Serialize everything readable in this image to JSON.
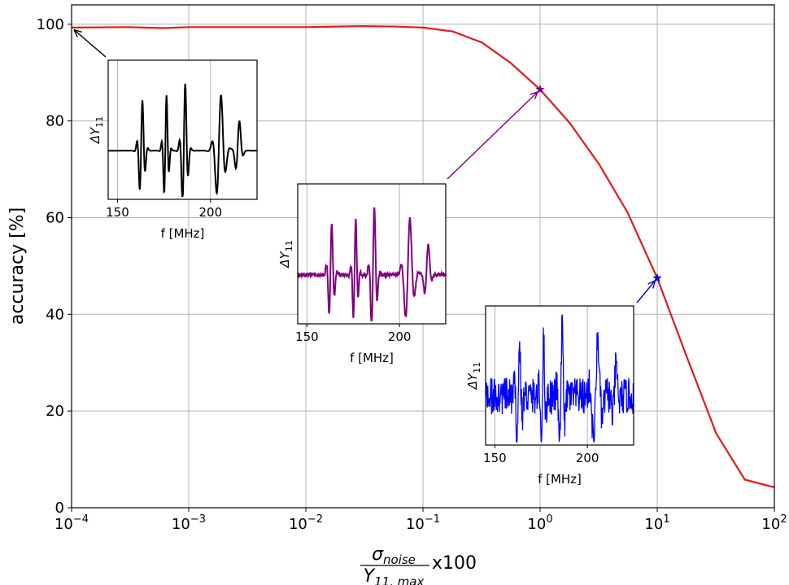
{
  "chart_data": {
    "type": "line",
    "title": "",
    "ylabel": "accuracy [%]",
    "xlabel": {
      "numerator_sym": "σ",
      "numerator_sub": "noise",
      "denominator_sym": "Y",
      "denominator_sub": "11, max",
      "suffix": "x100"
    },
    "x_scale": "log",
    "xlim": [
      0.0001,
      100
    ],
    "ylim": [
      0,
      104
    ],
    "grid": true,
    "x_ticks": [
      {
        "value": 0.0001,
        "base": "10",
        "exp": "−4"
      },
      {
        "value": 0.001,
        "base": "10",
        "exp": "−3"
      },
      {
        "value": 0.01,
        "base": "10",
        "exp": "−2"
      },
      {
        "value": 0.1,
        "base": "10",
        "exp": "−1"
      },
      {
        "value": 1,
        "base": "10",
        "exp": "0"
      },
      {
        "value": 10,
        "base": "10",
        "exp": "1"
      },
      {
        "value": 100,
        "base": "10",
        "exp": "2"
      }
    ],
    "y_ticks": [
      0,
      20,
      40,
      60,
      80,
      100
    ],
    "series": [
      {
        "color": "#e41a1c",
        "x": [
          0.0001,
          0.0003,
          0.0006,
          0.001,
          0.003,
          0.006,
          0.01,
          0.03,
          0.06,
          0.1,
          0.18,
          0.32,
          0.56,
          1,
          1.8,
          3.2,
          5.6,
          10,
          18,
          32,
          56,
          100
        ],
        "y": [
          99.3,
          99.4,
          99.2,
          99.4,
          99.4,
          99.4,
          99.4,
          99.6,
          99.5,
          99.3,
          98.5,
          96.2,
          92,
          86.5,
          79.5,
          71,
          61,
          47.5,
          31,
          15.3,
          5.8,
          4.2
        ]
      }
    ],
    "markers": [
      {
        "x": 0.0001,
        "y": 99.3,
        "color": "#000000"
      },
      {
        "x": 1,
        "y": 86.5,
        "color": "#800080"
      },
      {
        "x": 10,
        "y": 47.5,
        "color": "#0000cc"
      }
    ],
    "insets": [
      {
        "ylabel": "ΔY",
        "ylabel_sub": "11",
        "xlabel": "f [MHz]",
        "xlim": [
          145,
          225
        ],
        "x_ticks": [
          150,
          200
        ],
        "color": "#000000",
        "noise": 0
      },
      {
        "ylabel": "ΔY",
        "ylabel_sub": "11",
        "xlabel": "f [MHz]",
        "xlim": [
          145,
          225
        ],
        "x_ticks": [
          150,
          200
        ],
        "color": "#800080",
        "noise": 0.09
      },
      {
        "ylabel": "ΔY",
        "ylabel_sub": "11",
        "xlabel": "f [MHz]",
        "xlim": [
          145,
          225
        ],
        "x_ticks": [
          150,
          200
        ],
        "color": "#0000ff",
        "noise": 0.9
      }
    ]
  }
}
